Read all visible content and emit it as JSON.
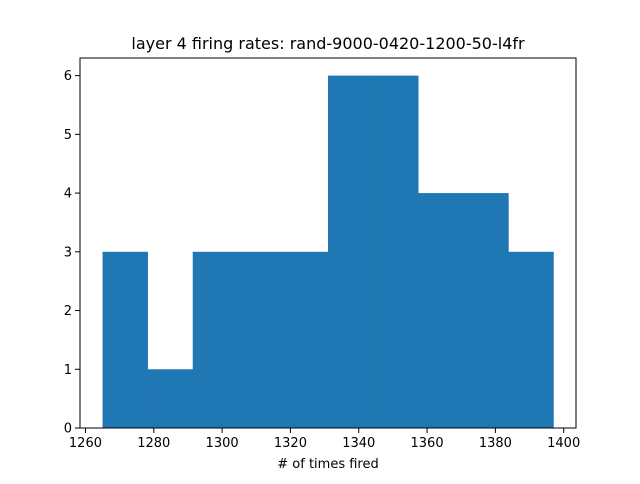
{
  "chart_data": {
    "type": "bar",
    "title": "layer 4 firing rates: rand-9000-0420-1200-50-l4fr",
    "xlabel": "# of times fired",
    "ylabel": "",
    "bins": [
      {
        "x0": 1265.0,
        "x1": 1278.2,
        "count": 3
      },
      {
        "x0": 1278.2,
        "x1": 1291.4,
        "count": 1
      },
      {
        "x0": 1291.4,
        "x1": 1304.6,
        "count": 3
      },
      {
        "x0": 1304.6,
        "x1": 1317.8,
        "count": 3
      },
      {
        "x0": 1317.8,
        "x1": 1331.0,
        "count": 3
      },
      {
        "x0": 1331.0,
        "x1": 1344.2,
        "count": 6
      },
      {
        "x0": 1344.2,
        "x1": 1357.4,
        "count": 6
      },
      {
        "x0": 1357.4,
        "x1": 1370.6,
        "count": 4
      },
      {
        "x0": 1370.6,
        "x1": 1383.8,
        "count": 4
      },
      {
        "x0": 1383.8,
        "x1": 1397.0,
        "count": 3
      }
    ],
    "xlim": [
      1258.4,
      1403.6
    ],
    "ylim": [
      0,
      6.3
    ],
    "xticks": [
      1260,
      1280,
      1300,
      1320,
      1340,
      1360,
      1380,
      1400
    ],
    "yticks": [
      0,
      1,
      2,
      3,
      4,
      5,
      6
    ],
    "bar_color": "#1f77b4",
    "grid": false
  }
}
